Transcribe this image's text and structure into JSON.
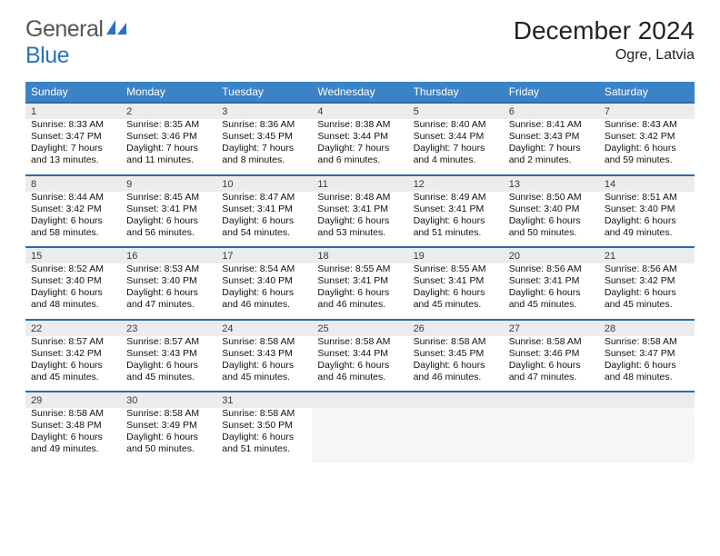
{
  "brand": {
    "part1": "General",
    "part2": "Blue"
  },
  "title": "December 2024",
  "location": "Ogre, Latvia",
  "colors": {
    "header_bg": "#3a83c6",
    "week_border": "#2a6ca6",
    "daynum_bg": "#ececec",
    "brand_blue": "#2a73b8"
  },
  "daynames": [
    "Sunday",
    "Monday",
    "Tuesday",
    "Wednesday",
    "Thursday",
    "Friday",
    "Saturday"
  ],
  "weeks": [
    [
      {
        "n": "1",
        "sr": "Sunrise: 8:33 AM",
        "ss": "Sunset: 3:47 PM",
        "dl": "Daylight: 7 hours and 13 minutes."
      },
      {
        "n": "2",
        "sr": "Sunrise: 8:35 AM",
        "ss": "Sunset: 3:46 PM",
        "dl": "Daylight: 7 hours and 11 minutes."
      },
      {
        "n": "3",
        "sr": "Sunrise: 8:36 AM",
        "ss": "Sunset: 3:45 PM",
        "dl": "Daylight: 7 hours and 8 minutes."
      },
      {
        "n": "4",
        "sr": "Sunrise: 8:38 AM",
        "ss": "Sunset: 3:44 PM",
        "dl": "Daylight: 7 hours and 6 minutes."
      },
      {
        "n": "5",
        "sr": "Sunrise: 8:40 AM",
        "ss": "Sunset: 3:44 PM",
        "dl": "Daylight: 7 hours and 4 minutes."
      },
      {
        "n": "6",
        "sr": "Sunrise: 8:41 AM",
        "ss": "Sunset: 3:43 PM",
        "dl": "Daylight: 7 hours and 2 minutes."
      },
      {
        "n": "7",
        "sr": "Sunrise: 8:43 AM",
        "ss": "Sunset: 3:42 PM",
        "dl": "Daylight: 6 hours and 59 minutes."
      }
    ],
    [
      {
        "n": "8",
        "sr": "Sunrise: 8:44 AM",
        "ss": "Sunset: 3:42 PM",
        "dl": "Daylight: 6 hours and 58 minutes."
      },
      {
        "n": "9",
        "sr": "Sunrise: 8:45 AM",
        "ss": "Sunset: 3:41 PM",
        "dl": "Daylight: 6 hours and 56 minutes."
      },
      {
        "n": "10",
        "sr": "Sunrise: 8:47 AM",
        "ss": "Sunset: 3:41 PM",
        "dl": "Daylight: 6 hours and 54 minutes."
      },
      {
        "n": "11",
        "sr": "Sunrise: 8:48 AM",
        "ss": "Sunset: 3:41 PM",
        "dl": "Daylight: 6 hours and 53 minutes."
      },
      {
        "n": "12",
        "sr": "Sunrise: 8:49 AM",
        "ss": "Sunset: 3:41 PM",
        "dl": "Daylight: 6 hours and 51 minutes."
      },
      {
        "n": "13",
        "sr": "Sunrise: 8:50 AM",
        "ss": "Sunset: 3:40 PM",
        "dl": "Daylight: 6 hours and 50 minutes."
      },
      {
        "n": "14",
        "sr": "Sunrise: 8:51 AM",
        "ss": "Sunset: 3:40 PM",
        "dl": "Daylight: 6 hours and 49 minutes."
      }
    ],
    [
      {
        "n": "15",
        "sr": "Sunrise: 8:52 AM",
        "ss": "Sunset: 3:40 PM",
        "dl": "Daylight: 6 hours and 48 minutes."
      },
      {
        "n": "16",
        "sr": "Sunrise: 8:53 AM",
        "ss": "Sunset: 3:40 PM",
        "dl": "Daylight: 6 hours and 47 minutes."
      },
      {
        "n": "17",
        "sr": "Sunrise: 8:54 AM",
        "ss": "Sunset: 3:40 PM",
        "dl": "Daylight: 6 hours and 46 minutes."
      },
      {
        "n": "18",
        "sr": "Sunrise: 8:55 AM",
        "ss": "Sunset: 3:41 PM",
        "dl": "Daylight: 6 hours and 46 minutes."
      },
      {
        "n": "19",
        "sr": "Sunrise: 8:55 AM",
        "ss": "Sunset: 3:41 PM",
        "dl": "Daylight: 6 hours and 45 minutes."
      },
      {
        "n": "20",
        "sr": "Sunrise: 8:56 AM",
        "ss": "Sunset: 3:41 PM",
        "dl": "Daylight: 6 hours and 45 minutes."
      },
      {
        "n": "21",
        "sr": "Sunrise: 8:56 AM",
        "ss": "Sunset: 3:42 PM",
        "dl": "Daylight: 6 hours and 45 minutes."
      }
    ],
    [
      {
        "n": "22",
        "sr": "Sunrise: 8:57 AM",
        "ss": "Sunset: 3:42 PM",
        "dl": "Daylight: 6 hours and 45 minutes."
      },
      {
        "n": "23",
        "sr": "Sunrise: 8:57 AM",
        "ss": "Sunset: 3:43 PM",
        "dl": "Daylight: 6 hours and 45 minutes."
      },
      {
        "n": "24",
        "sr": "Sunrise: 8:58 AM",
        "ss": "Sunset: 3:43 PM",
        "dl": "Daylight: 6 hours and 45 minutes."
      },
      {
        "n": "25",
        "sr": "Sunrise: 8:58 AM",
        "ss": "Sunset: 3:44 PM",
        "dl": "Daylight: 6 hours and 46 minutes."
      },
      {
        "n": "26",
        "sr": "Sunrise: 8:58 AM",
        "ss": "Sunset: 3:45 PM",
        "dl": "Daylight: 6 hours and 46 minutes."
      },
      {
        "n": "27",
        "sr": "Sunrise: 8:58 AM",
        "ss": "Sunset: 3:46 PM",
        "dl": "Daylight: 6 hours and 47 minutes."
      },
      {
        "n": "28",
        "sr": "Sunrise: 8:58 AM",
        "ss": "Sunset: 3:47 PM",
        "dl": "Daylight: 6 hours and 48 minutes."
      }
    ],
    [
      {
        "n": "29",
        "sr": "Sunrise: 8:58 AM",
        "ss": "Sunset: 3:48 PM",
        "dl": "Daylight: 6 hours and 49 minutes."
      },
      {
        "n": "30",
        "sr": "Sunrise: 8:58 AM",
        "ss": "Sunset: 3:49 PM",
        "dl": "Daylight: 6 hours and 50 minutes."
      },
      {
        "n": "31",
        "sr": "Sunrise: 8:58 AM",
        "ss": "Sunset: 3:50 PM",
        "dl": "Daylight: 6 hours and 51 minutes."
      },
      null,
      null,
      null,
      null
    ]
  ]
}
